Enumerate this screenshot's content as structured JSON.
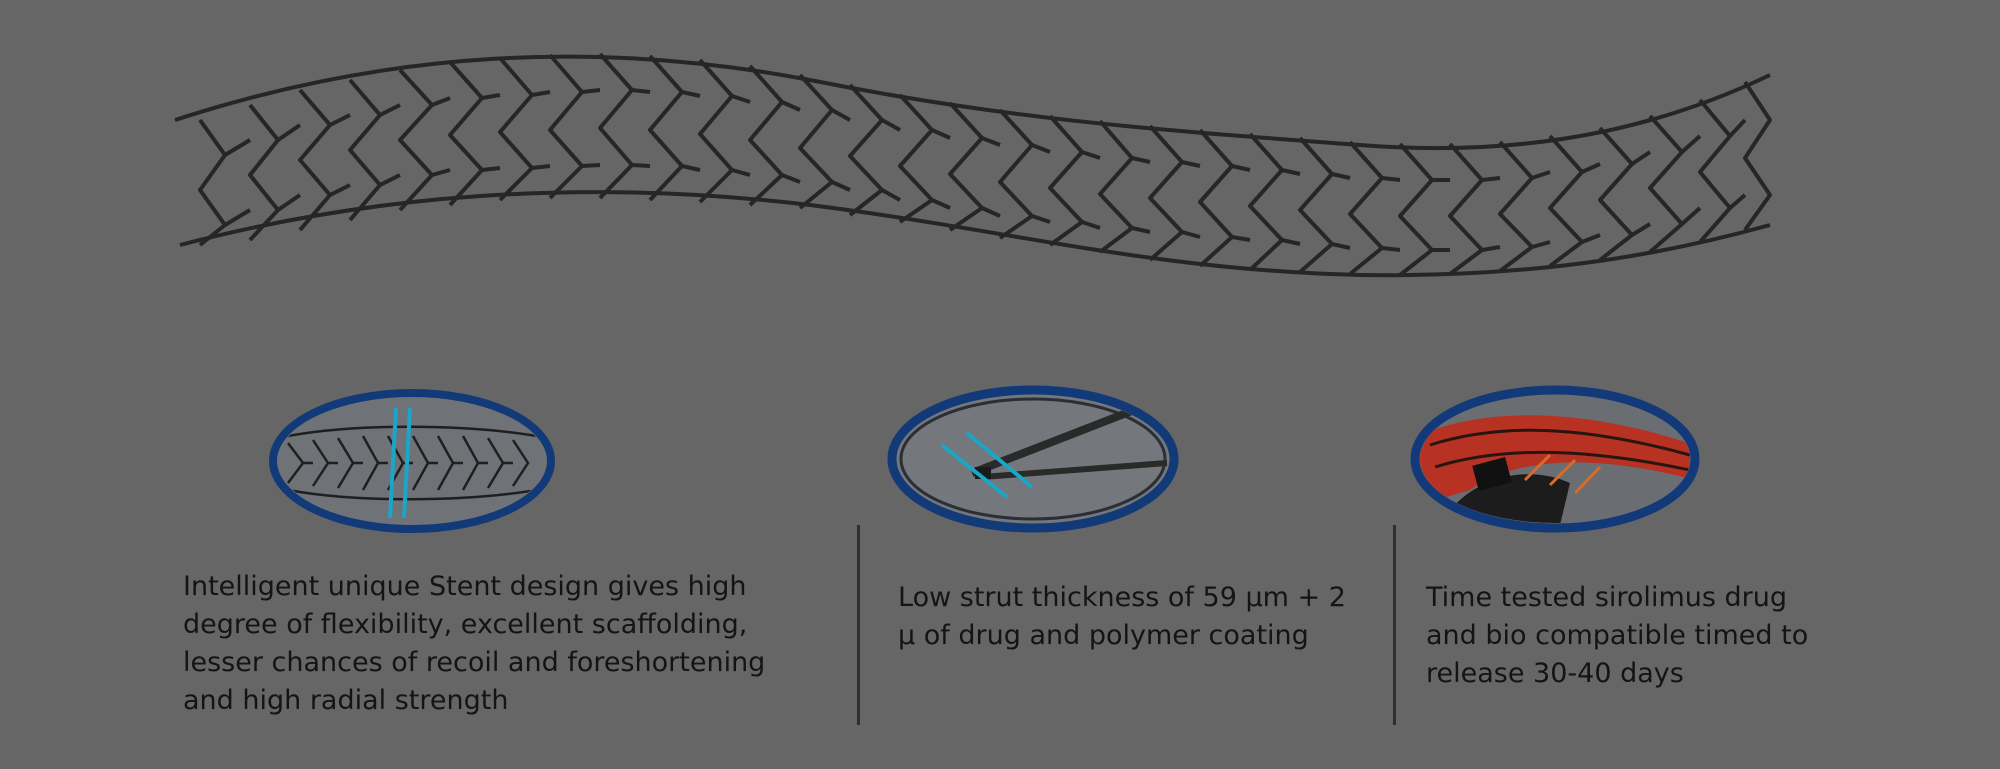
{
  "features": [
    {
      "text": "Intelligent unique Stent design gives high\ndegree of flexibility, excellent scaffolding,\nlesser chances of recoil and foreshortening\nand high radial strength"
    },
    {
      "text": "Low strut thickness of 59 µm + 2\nµ of drug and polymer coating"
    },
    {
      "text": "Time tested sirolimus drug\nand bio compatible timed to\nrelease 30-40 days"
    }
  ],
  "colors": {
    "background": "#666666",
    "text": "#141414",
    "ring_blue": "#123a78",
    "accent_cyan": "#18a7c9",
    "stent_wire": "#262626",
    "coating_red": "#b73222"
  }
}
